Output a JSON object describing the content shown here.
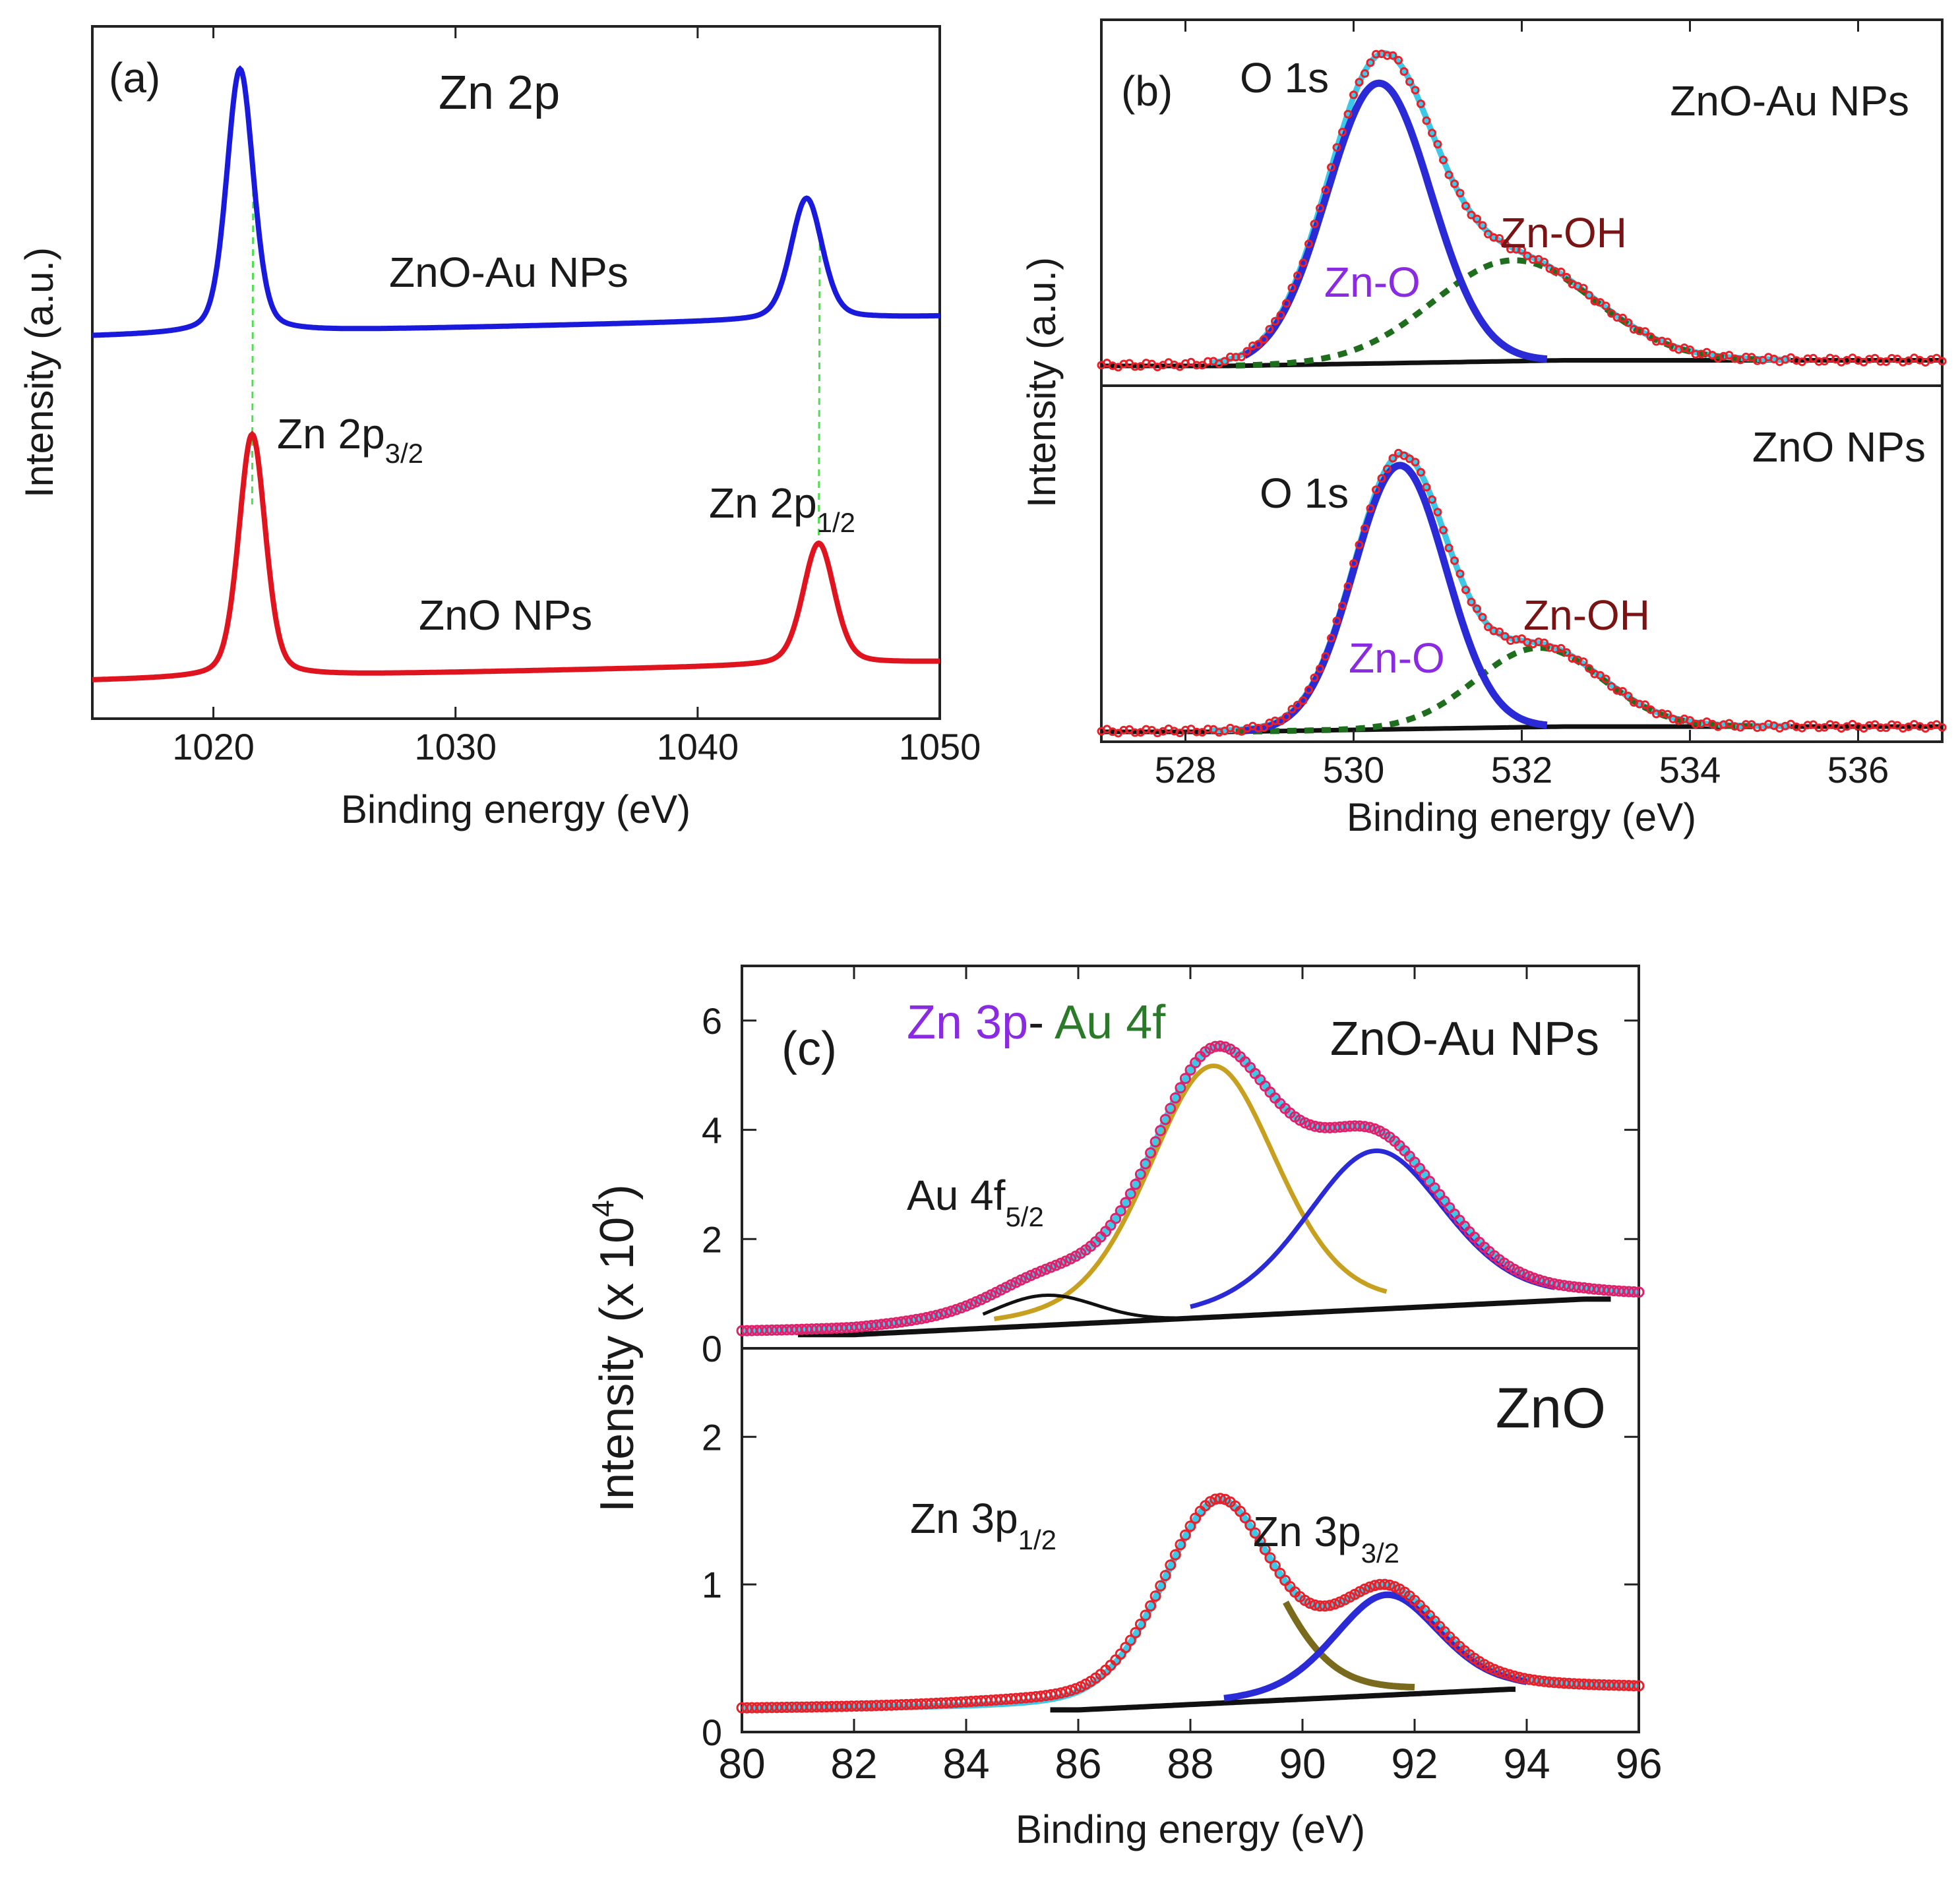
{
  "colors": {
    "zno_au_curve": "#1a1adc",
    "zno_curve": "#e0141e",
    "guide": "#4ee04e",
    "zno_component": "#2a2ad6",
    "zn_oh_component": "#1e6e1e",
    "envelope": "#3cc8e6",
    "markers": "#e8202a",
    "markers_c": "#e0206a",
    "background": "#111111",
    "au_component": "#c8a020",
    "zn3p12_component": "#7a6a1e",
    "label_purple": "#8a2be2",
    "label_dark_red": "#7a1414",
    "label_green": "#2a7a2a"
  },
  "chart_data": [
    {
      "id": "a",
      "type": "line",
      "panel_label": "(a)",
      "title": "Zn 2p",
      "xlabel": "Binding energy (eV)",
      "ylabel": "Intensity (a.u.)",
      "xlim": [
        1015,
        1050
      ],
      "xticks": [
        "1020",
        "1030",
        "1040",
        "1050"
      ],
      "series": [
        {
          "name": "ZnO-Au NPs",
          "peaks_eV": [
            1021.1,
            1044.5
          ],
          "baseline": "offset upper"
        },
        {
          "name": "ZnO NPs",
          "peaks_eV": [
            1021.6,
            1045.0
          ],
          "baseline": "lower"
        }
      ],
      "annotations": {
        "zno_au": "ZnO-Au NPs",
        "zno": "ZnO NPs",
        "zn2p32_base": "Zn 2p",
        "zn2p32_sub": "3/2",
        "zn2p12_base": "Zn 2p",
        "zn2p12_sub": "1/2"
      }
    },
    {
      "id": "b",
      "type": "line",
      "panel_label": "(b)",
      "xlabel": "Binding energy (eV)",
      "ylabel": "Intensity (a.u.)",
      "xlim": [
        527,
        537
      ],
      "xticks": [
        "528",
        "530",
        "532",
        "534",
        "536"
      ],
      "subpanels": [
        {
          "sample": "ZnO-Au NPs",
          "core_level": "O 1s",
          "components": [
            {
              "name": "Zn-O",
              "center_eV": 530.3,
              "fwhm_eV": 1.6
            },
            {
              "name": "Zn-OH",
              "center_eV": 531.9,
              "fwhm_eV": 2.4
            }
          ]
        },
        {
          "sample": "ZnO NPs",
          "core_level": "O 1s",
          "components": [
            {
              "name": "Zn-O",
              "center_eV": 530.55,
              "fwhm_eV": 1.5
            },
            {
              "name": "Zn-OH",
              "center_eV": 532.2,
              "fwhm_eV": 2.0
            }
          ]
        }
      ]
    },
    {
      "id": "c",
      "type": "line",
      "panel_label": "(c)",
      "xlabel": "Binding energy (eV)",
      "ylabel_base": "Intensity (x 10",
      "ylabel_exp": "4",
      "ylabel_end": ")",
      "xlim": [
        80,
        96
      ],
      "xticks": [
        "80",
        "82",
        "84",
        "86",
        "88",
        "90",
        "92",
        "94",
        "96"
      ],
      "title_parts": [
        "Zn 3p",
        "- ",
        "Au 4f"
      ],
      "subpanels": [
        {
          "sample": "ZnO-Au  NPs",
          "ylim": [
            0,
            7
          ],
          "yticks": [
            "0",
            "2",
            "4",
            "6"
          ],
          "peak_value_approx": 5.3,
          "components": [
            {
              "name": "Au 4f 5/2",
              "center_eV": 85.4,
              "height": 0.55
            },
            {
              "name": "Zn 3p 1/2",
              "center_eV": 88.4,
              "height": 4.6
            },
            {
              "name": "Zn 3p 3/2",
              "center_eV": 91.3,
              "height": 2.9
            }
          ],
          "label_au_base": "Au 4f",
          "label_au_sub": "5/2"
        },
        {
          "sample": "ZnO",
          "ylim": [
            0,
            2.6
          ],
          "yticks": [
            "0",
            "1",
            "2"
          ],
          "peak_value_approx": 1.55,
          "components": [
            {
              "name": "Zn 3p 1/2",
              "center_eV": 88.5,
              "height": 1.35
            },
            {
              "name": "Zn 3p 3/2",
              "center_eV": 91.5,
              "height": 0.68
            }
          ],
          "label_p12_base": "Zn 3p",
          "label_p12_sub": "1/2",
          "label_p32_base": "Zn 3p",
          "label_p32_sub": "3/2"
        }
      ]
    }
  ]
}
